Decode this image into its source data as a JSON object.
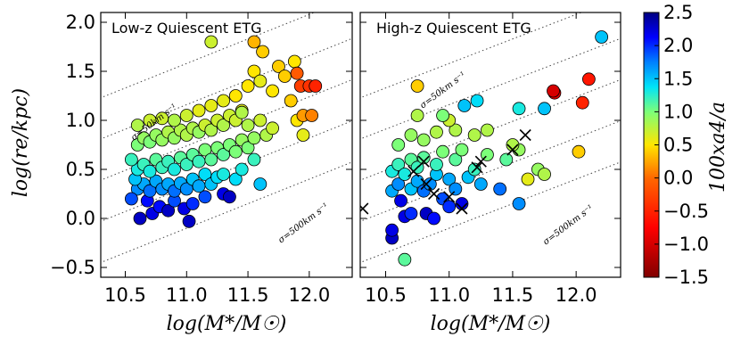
{
  "colors": {
    "colormap": [
      "#000080",
      "#0000ff",
      "#0080ff",
      "#00e4f8",
      "#7cff79",
      "#ffe600",
      "#ff6800",
      "#ff0000",
      "#800000"
    ],
    "colormap_stops": [
      2.5,
      2.125,
      1.75,
      1.375,
      1.0,
      0.5,
      0.0,
      -0.75,
      -1.5
    ],
    "marker_edge": "#000000",
    "cross": "#000000",
    "ref_line": "#444444"
  },
  "chart_data": [
    {
      "type": "scatter",
      "panel": "left",
      "title": "Low-z Quiescent ETG",
      "xlabel": "log(M*/M☉)",
      "ylabel": "log(re/kpc)",
      "xlim": [
        10.3,
        12.35
      ],
      "ylim": [
        -0.6,
        2.1
      ],
      "xticks": [
        "10.5",
        "11.0",
        "11.5",
        "12.0"
      ],
      "yticks": [
        "−0.5",
        "0.0",
        "0.5",
        "1.0",
        "1.5",
        "2.0"
      ],
      "ref_lines": [
        {
          "label": "σ=50km s⁻¹"
        },
        {
          "label": "σ=500km s⁻¹"
        }
      ],
      "points": [
        [
          10.72,
          0.05,
          2.2
        ],
        [
          10.78,
          0.12,
          2.1
        ],
        [
          10.85,
          0.08,
          2.3
        ],
        [
          10.9,
          0.18,
          1.9
        ],
        [
          10.98,
          0.1,
          2.2
        ],
        [
          11.05,
          0.15,
          2.0
        ],
        [
          10.62,
          0.0,
          2.3
        ],
        [
          10.68,
          0.18,
          2.1
        ],
        [
          11.15,
          0.22,
          1.9
        ],
        [
          11.3,
          0.25,
          2.2
        ],
        [
          11.35,
          0.22,
          2.3
        ],
        [
          11.02,
          -0.03,
          2.3
        ],
        [
          10.6,
          0.3,
          1.7
        ],
        [
          10.65,
          0.35,
          1.6
        ],
        [
          10.7,
          0.28,
          1.8
        ],
        [
          10.75,
          0.38,
          1.6
        ],
        [
          10.8,
          0.3,
          1.7
        ],
        [
          10.85,
          0.35,
          1.6
        ],
        [
          10.9,
          0.28,
          1.8
        ],
        [
          10.95,
          0.36,
          1.6
        ],
        [
          11.0,
          0.3,
          1.7
        ],
        [
          11.05,
          0.4,
          1.5
        ],
        [
          11.1,
          0.33,
          1.6
        ],
        [
          11.15,
          0.45,
          1.4
        ],
        [
          11.2,
          0.35,
          1.5
        ],
        [
          11.25,
          0.42,
          1.4
        ],
        [
          11.3,
          0.45,
          1.3
        ],
        [
          11.4,
          0.4,
          1.4
        ],
        [
          11.45,
          0.5,
          1.3
        ],
        [
          11.55,
          0.6,
          1.2
        ],
        [
          11.6,
          0.35,
          1.5
        ],
        [
          10.55,
          0.2,
          1.9
        ],
        [
          10.58,
          0.4,
          1.5
        ],
        [
          10.6,
          0.5,
          1.3
        ],
        [
          10.65,
          0.55,
          1.2
        ],
        [
          10.7,
          0.48,
          1.3
        ],
        [
          10.75,
          0.6,
          1.1
        ],
        [
          10.8,
          0.52,
          1.2
        ],
        [
          10.85,
          0.58,
          1.2
        ],
        [
          10.9,
          0.5,
          1.3
        ],
        [
          10.95,
          0.62,
          1.1
        ],
        [
          11.0,
          0.55,
          1.2
        ],
        [
          11.05,
          0.65,
          1.1
        ],
        [
          11.1,
          0.58,
          1.2
        ],
        [
          11.15,
          0.7,
          1.0
        ],
        [
          11.2,
          0.6,
          1.1
        ],
        [
          11.25,
          0.72,
          1.0
        ],
        [
          11.3,
          0.65,
          1.1
        ],
        [
          11.35,
          0.75,
          1.0
        ],
        [
          11.4,
          0.68,
          1.0
        ],
        [
          11.45,
          0.8,
          0.9
        ],
        [
          11.5,
          0.72,
          1.0
        ],
        [
          11.55,
          0.82,
          0.9
        ],
        [
          10.55,
          0.6,
          1.2
        ],
        [
          10.6,
          0.75,
          1.0
        ],
        [
          10.65,
          0.82,
          0.9
        ],
        [
          10.7,
          0.78,
          1.0
        ],
        [
          10.75,
          0.85,
          0.9
        ],
        [
          10.8,
          0.8,
          0.9
        ],
        [
          10.85,
          0.88,
          0.8
        ],
        [
          10.9,
          0.82,
          0.9
        ],
        [
          10.95,
          0.9,
          0.8
        ],
        [
          11.0,
          0.85,
          0.8
        ],
        [
          11.05,
          0.92,
          0.8
        ],
        [
          11.1,
          0.88,
          0.9
        ],
        [
          11.15,
          0.95,
          0.7
        ],
        [
          11.2,
          0.9,
          0.8
        ],
        [
          11.25,
          1.0,
          0.7
        ],
        [
          11.3,
          0.95,
          0.8
        ],
        [
          11.35,
          1.05,
          0.7
        ],
        [
          11.4,
          1.0,
          0.7
        ],
        [
          11.45,
          1.1,
          0.6
        ],
        [
          11.5,
          0.95,
          0.8
        ],
        [
          11.6,
          1.0,
          0.7
        ],
        [
          11.65,
          0.85,
          0.8
        ],
        [
          11.7,
          0.92,
          0.7
        ],
        [
          10.6,
          0.95,
          0.8
        ],
        [
          10.7,
          1.0,
          0.7
        ],
        [
          10.8,
          1.02,
          0.7
        ],
        [
          10.9,
          1.0,
          0.8
        ],
        [
          11.0,
          1.05,
          0.7
        ],
        [
          11.1,
          1.1,
          0.6
        ],
        [
          11.2,
          1.15,
          0.6
        ],
        [
          11.3,
          1.2,
          0.6
        ],
        [
          11.4,
          1.25,
          0.5
        ],
        [
          11.5,
          1.35,
          0.5
        ],
        [
          11.55,
          1.5,
          0.5
        ],
        [
          11.6,
          1.4,
          0.6
        ],
        [
          11.7,
          1.3,
          0.5
        ],
        [
          11.75,
          1.55,
          0.4
        ],
        [
          11.8,
          1.45,
          0.4
        ],
        [
          11.85,
          1.2,
          0.4
        ],
        [
          11.9,
          1.0,
          0.5
        ],
        [
          11.2,
          1.8,
          0.7
        ],
        [
          11.55,
          1.8,
          0.3
        ],
        [
          11.88,
          1.6,
          0.5
        ],
        [
          11.62,
          1.7,
          0.4
        ],
        [
          11.93,
          1.35,
          -0.3
        ],
        [
          12.0,
          1.35,
          -0.4
        ],
        [
          12.05,
          1.35,
          -0.5
        ],
        [
          11.95,
          1.05,
          0.2
        ],
        [
          12.02,
          1.05,
          0.1
        ],
        [
          11.9,
          1.48,
          -0.1
        ],
        [
          11.45,
          1.08,
          0.8
        ],
        [
          11.95,
          0.85,
          0.6
        ]
      ]
    },
    {
      "type": "scatter",
      "panel": "right",
      "title": "High-z Quiescent ETG",
      "xlabel": "log(M*/M☉)",
      "xlim": [
        10.3,
        12.35
      ],
      "ylim": [
        -0.6,
        2.1
      ],
      "xticks": [
        "10.5",
        "11.0",
        "11.5",
        "12.0"
      ],
      "ref_lines": [
        {
          "label": "σ=50km s⁻¹"
        },
        {
          "label": "σ=500km s⁻¹"
        }
      ],
      "points": [
        [
          10.55,
          -0.2,
          2.3
        ],
        [
          10.55,
          -0.12,
          2.2
        ],
        [
          10.65,
          0.02,
          2.2
        ],
        [
          10.7,
          0.05,
          2.0
        ],
        [
          10.82,
          0.05,
          2.3
        ],
        [
          10.88,
          0.0,
          2.1
        ],
        [
          10.95,
          0.2,
          1.9
        ],
        [
          11.0,
          0.12,
          2.0
        ],
        [
          11.1,
          0.15,
          2.2
        ],
        [
          10.62,
          0.18,
          2.2
        ],
        [
          10.55,
          0.28,
          1.6
        ],
        [
          10.6,
          0.35,
          1.7
        ],
        [
          10.7,
          0.3,
          1.5
        ],
        [
          10.75,
          0.38,
          1.6
        ],
        [
          10.8,
          0.28,
          1.8
        ],
        [
          10.85,
          0.35,
          1.7
        ],
        [
          10.9,
          0.45,
          1.5
        ],
        [
          11.0,
          0.4,
          1.6
        ],
        [
          11.05,
          0.3,
          1.7
        ],
        [
          11.15,
          0.42,
          1.5
        ],
        [
          11.25,
          0.35,
          1.6
        ],
        [
          11.4,
          0.3,
          1.8
        ],
        [
          11.55,
          0.15,
          1.7
        ],
        [
          10.55,
          0.48,
          1.3
        ],
        [
          10.6,
          0.55,
          1.2
        ],
        [
          10.65,
          0.45,
          1.3
        ],
        [
          10.7,
          0.6,
          1.1
        ],
        [
          10.75,
          0.52,
          1.2
        ],
        [
          10.8,
          0.62,
          1.1
        ],
        [
          10.9,
          0.55,
          1.2
        ],
        [
          10.95,
          0.68,
          1.0
        ],
        [
          11.05,
          0.6,
          1.1
        ],
        [
          11.1,
          0.7,
          1.0
        ],
        [
          11.2,
          0.5,
          1.2
        ],
        [
          11.3,
          0.65,
          1.0
        ],
        [
          11.45,
          0.6,
          1.1
        ],
        [
          11.55,
          0.7,
          0.9
        ],
        [
          11.7,
          0.5,
          0.9
        ],
        [
          11.75,
          0.45,
          0.8
        ],
        [
          11.62,
          0.4,
          0.6
        ],
        [
          10.6,
          0.75,
          1.0
        ],
        [
          10.7,
          0.85,
          0.9
        ],
        [
          10.8,
          0.8,
          0.9
        ],
        [
          10.9,
          0.88,
          0.8
        ],
        [
          11.05,
          0.9,
          0.8
        ],
        [
          11.2,
          0.85,
          0.8
        ],
        [
          11.3,
          0.9,
          0.8
        ],
        [
          11.5,
          0.75,
          0.8
        ],
        [
          10.75,
          1.05,
          0.8
        ],
        [
          11.0,
          1.0,
          0.7
        ],
        [
          10.75,
          1.35,
          0.4
        ],
        [
          10.95,
          1.05,
          1.0
        ],
        [
          11.12,
          1.15,
          1.5
        ],
        [
          11.22,
          1.2,
          1.4
        ],
        [
          11.55,
          1.12,
          1.3
        ],
        [
          11.75,
          1.12,
          1.5
        ],
        [
          11.83,
          1.28,
          -0.9
        ],
        [
          11.82,
          1.3,
          -1.0
        ],
        [
          12.05,
          1.18,
          -0.5
        ],
        [
          12.1,
          1.42,
          -0.6
        ],
        [
          12.2,
          1.85,
          1.5
        ],
        [
          12.02,
          0.68,
          0.4
        ],
        [
          10.65,
          -0.42,
          1.1
        ]
      ],
      "crosses": [
        [
          10.32,
          0.1
        ],
        [
          10.72,
          0.48
        ],
        [
          10.8,
          0.58
        ],
        [
          10.82,
          0.35
        ],
        [
          10.88,
          0.25
        ],
        [
          11.0,
          0.22
        ],
        [
          11.1,
          0.1
        ],
        [
          11.22,
          0.52
        ],
        [
          11.25,
          0.58
        ],
        [
          11.5,
          0.7
        ],
        [
          11.6,
          0.85
        ]
      ]
    }
  ],
  "colorbar": {
    "label": "100xa4/a",
    "ticks": [
      "2.5",
      "2.0",
      "1.5",
      "1.0",
      "0.5",
      "0.0",
      "−0.5",
      "−1.0",
      "−1.5"
    ],
    "range": [
      -1.5,
      2.5
    ]
  }
}
